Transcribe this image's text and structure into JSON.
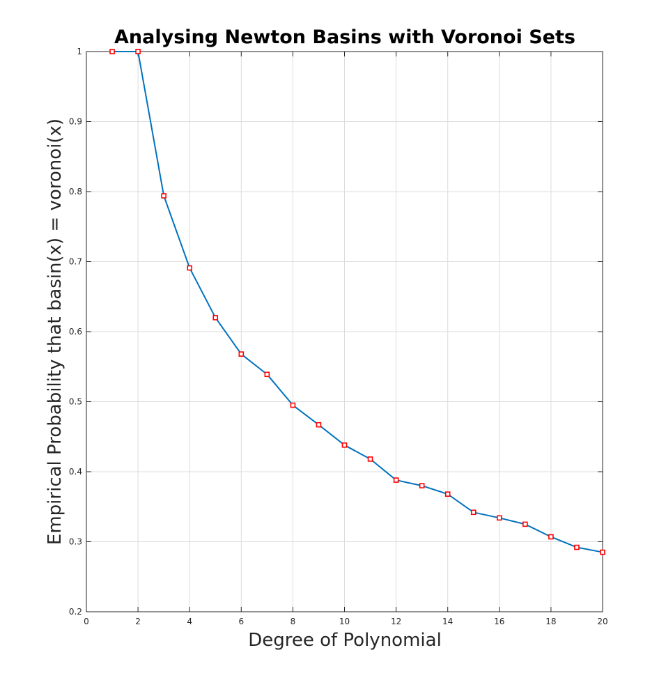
{
  "chart_data": {
    "type": "line",
    "title": "Analysing Newton Basins with Voronoi Sets",
    "xlabel": "Degree of Polynomial",
    "ylabel": "Empirical Probability that basin(x) = voronoi(x)",
    "xlim": [
      0,
      20
    ],
    "ylim": [
      0.2,
      1
    ],
    "xticks": [
      0,
      2,
      4,
      6,
      8,
      10,
      12,
      14,
      16,
      18,
      20
    ],
    "yticks": [
      0.2,
      0.3,
      0.4,
      0.5,
      0.6,
      0.7,
      0.8,
      0.9,
      1
    ],
    "xtick_labels": [
      "0",
      "2",
      "4",
      "6",
      "8",
      "10",
      "12",
      "14",
      "16",
      "18",
      "20"
    ],
    "ytick_labels": [
      "0.2",
      "0.3",
      "0.4",
      "0.5",
      "0.6",
      "0.7",
      "0.8",
      "0.9",
      "1"
    ],
    "grid": true,
    "legend": "none",
    "series": [
      {
        "x": [
          1,
          2,
          3,
          4,
          5,
          6,
          7,
          8,
          9,
          10,
          11,
          12,
          13,
          14,
          15,
          16,
          17,
          18,
          19,
          20
        ],
        "y": [
          1.0,
          1.0,
          0.794,
          0.691,
          0.62,
          0.568,
          0.539,
          0.495,
          0.467,
          0.438,
          0.418,
          0.388,
          0.38,
          0.368,
          0.342,
          0.334,
          0.325,
          0.307,
          0.292,
          0.285
        ],
        "line_color": "#0072BD",
        "marker": "square",
        "marker_edge_color": "#FF0000",
        "marker_face_color": "#FFFFFF"
      }
    ]
  }
}
